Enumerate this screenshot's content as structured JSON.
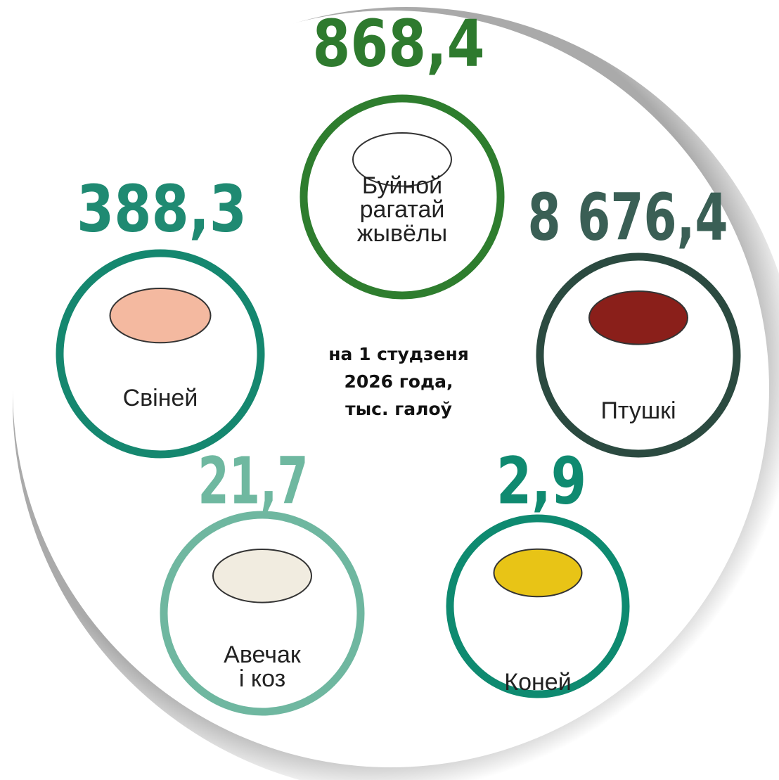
{
  "note_lines": [
    "на 1 студзеня",
    "2026 года,",
    "тыс. галоў"
  ],
  "items": [
    {
      "value": "868,4",
      "label": [
        "Буйной",
        "рагатай",
        "жывёлы"
      ]
    },
    {
      "value": "388,3",
      "label": [
        "Свіней"
      ]
    },
    {
      "value": "8 676,4",
      "label": [
        "Птушкі"
      ]
    },
    {
      "value": "21,7",
      "label": [
        "Авечак",
        "і коз"
      ]
    },
    {
      "value": "2,9",
      "label": [
        "Коней"
      ]
    }
  ]
}
